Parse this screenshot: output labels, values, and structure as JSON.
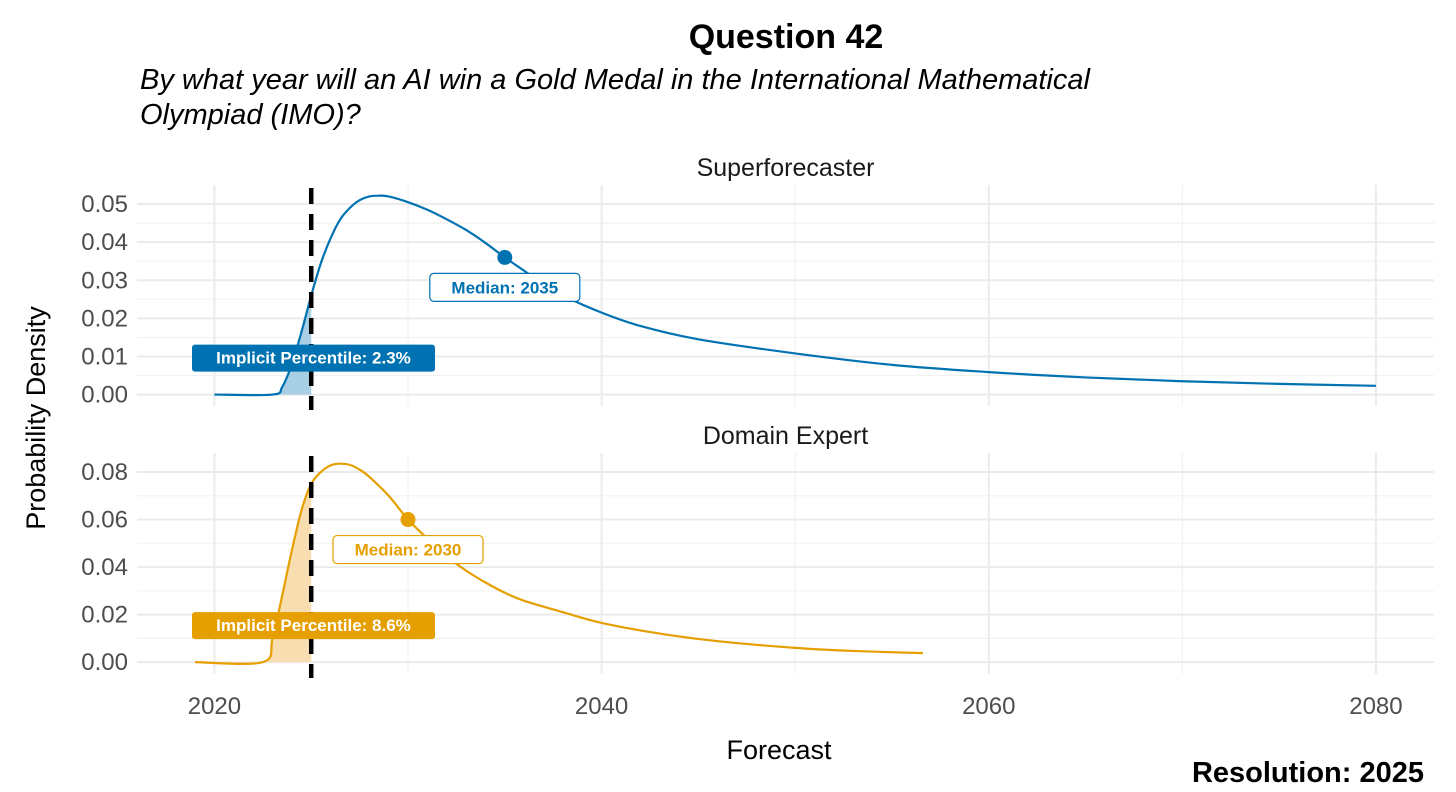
{
  "title": "Question 42",
  "subtitle_lines": [
    "By what year will an AI win a Gold Medal in the International Mathematical",
    "Olympiad (IMO)?"
  ],
  "resolution_text": "Resolution: 2025",
  "chart_data": {
    "type": "area",
    "xlabel": "Forecast",
    "ylabel": "Probability Density",
    "xlim": [
      2016,
      2083
    ],
    "x_ticks": [
      2020,
      2040,
      2060,
      2080
    ],
    "x_tick_labels": [
      "2020",
      "2040",
      "2060",
      "2080"
    ],
    "resolution_year": 2025,
    "grid": true,
    "legend": "none",
    "panels": [
      {
        "name": "Superforecaster",
        "color": "#0072B2",
        "fill_color": "#9ECAE1",
        "ylim": [
          -0.003,
          0.055
        ],
        "y_ticks": [
          0.0,
          0.01,
          0.02,
          0.03,
          0.04,
          0.05
        ],
        "y_tick_labels": [
          "0.00",
          "0.01",
          "0.02",
          "0.03",
          "0.04",
          "0.05"
        ],
        "median_year": 2035,
        "median_density": 0.036,
        "median_label": "Median: 2035",
        "percentile_label": "Implicit Percentile: 2.3%",
        "curve": {
          "x": [
            2020,
            2023,
            2023.5,
            2024,
            2024.5,
            2025,
            2025.5,
            2026,
            2026.5,
            2027,
            2027.5,
            2028,
            2028.5,
            2029,
            2030,
            2031,
            2032,
            2033,
            2034,
            2035,
            2036,
            2037,
            2038,
            2040,
            2042,
            2045,
            2050,
            2055,
            2060,
            2065,
            2070,
            2075,
            2080
          ],
          "y": [
            0.0,
            0.0,
            0.002,
            0.008,
            0.0165,
            0.026,
            0.0345,
            0.041,
            0.046,
            0.049,
            0.051,
            0.052,
            0.0522,
            0.052,
            0.0505,
            0.0485,
            0.046,
            0.0432,
            0.0398,
            0.036,
            0.0325,
            0.029,
            0.026,
            0.0215,
            0.018,
            0.0145,
            0.0108,
            0.0078,
            0.0059,
            0.0045,
            0.0035,
            0.0028,
            0.0023
          ]
        }
      },
      {
        "name": "Domain Expert",
        "color": "#E69F00",
        "fill_color": "#F7D9A8",
        "ylim": [
          -0.005,
          0.088
        ],
        "y_ticks": [
          0.0,
          0.02,
          0.04,
          0.06,
          0.08
        ],
        "y_tick_labels": [
          "0.00",
          "0.02",
          "0.04",
          "0.06",
          "0.08"
        ],
        "median_year": 2030,
        "median_density": 0.06,
        "median_label": "Median: 2030",
        "percentile_label": "Implicit Percentile: 8.6%",
        "curve": {
          "x": [
            2019,
            2022.5,
            2023,
            2023.5,
            2024,
            2024.5,
            2025,
            2025.5,
            2026,
            2026.5,
            2027,
            2027.5,
            2028,
            2029,
            2030,
            2031,
            2032,
            2033,
            2034,
            2035,
            2036,
            2038,
            2040,
            2043,
            2046,
            2050,
            2053,
            2056.6
          ],
          "y": [
            0.0,
            0.0,
            0.01,
            0.028,
            0.047,
            0.064,
            0.075,
            0.08,
            0.0828,
            0.0835,
            0.083,
            0.081,
            0.078,
            0.07,
            0.06,
            0.052,
            0.0445,
            0.0385,
            0.0335,
            0.0292,
            0.0258,
            0.021,
            0.0165,
            0.012,
            0.0088,
            0.006,
            0.0047,
            0.0038
          ]
        }
      }
    ]
  }
}
